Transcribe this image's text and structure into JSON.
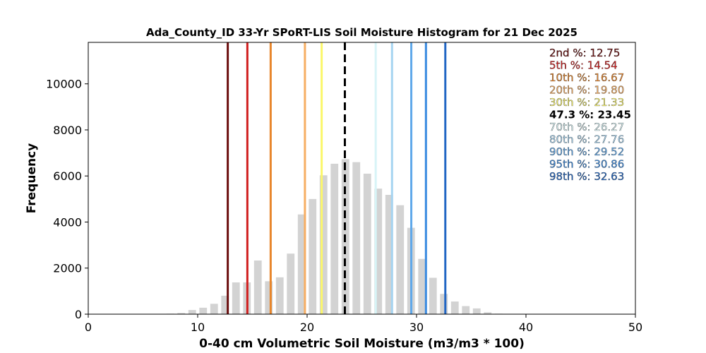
{
  "chart_data": {
    "type": "bar",
    "title": "Ada_County_ID 33-Yr SPoRT-LIS Soil Moisture Histogram for 21 Dec 2025",
    "xlabel": "0-40 cm Volumetric Soil Moisture (m3/m3 * 100)",
    "ylabel": "Frequency",
    "xlim": [
      0,
      50
    ],
    "ylim": [
      0,
      11800
    ],
    "xticks": [
      0,
      10,
      20,
      30,
      40,
      50
    ],
    "xtick_labels": [
      "0",
      "10",
      "20",
      "30",
      "40",
      "50"
    ],
    "yticks": [
      0,
      2000,
      4000,
      6000,
      8000,
      10000
    ],
    "ytick_labels": [
      "0",
      "2000",
      "4000",
      "6000",
      "8000",
      "10000"
    ],
    "bar_color": "#d3d3d3",
    "x": [
      7.5,
      8.5,
      9.5,
      10.5,
      11.5,
      12.5,
      13.5,
      14.5,
      15.5,
      16.5,
      17.5,
      18.5,
      19.5,
      20.5,
      21.5,
      22.5,
      23.5,
      24.5,
      25.5,
      26.5,
      27.5,
      28.5,
      29.5,
      30.5,
      31.5,
      32.5,
      33.5,
      34.5,
      35.5,
      36.5,
      37.5
    ],
    "values": [
      20,
      50,
      180,
      280,
      450,
      800,
      1380,
      1380,
      2330,
      1430,
      1600,
      2630,
      4330,
      5000,
      6030,
      6530,
      6730,
      6600,
      6100,
      5450,
      5180,
      4730,
      3750,
      2400,
      1580,
      880,
      550,
      350,
      250,
      80,
      20
    ],
    "percentile_lines": [
      {
        "label": "2nd %: 12.75",
        "value": 12.75,
        "color": "#6b0e0e",
        "style": "solid"
      },
      {
        "label": "5th %: 14.54",
        "value": 14.54,
        "color": "#d11f1f",
        "style": "solid"
      },
      {
        "label": "10th %: 16.67",
        "value": 16.67,
        "color": "#e8862b",
        "style": "solid"
      },
      {
        "label": "20th %: 19.80",
        "value": 19.8,
        "color": "#f6ae63",
        "style": "solid"
      },
      {
        "label": "30th %: 21.33",
        "value": 21.33,
        "color": "#fbf76a",
        "style": "solid"
      },
      {
        "label": "47.3 %: 23.45",
        "value": 23.45,
        "color": "#000000",
        "style": "dashed"
      },
      {
        "label": "70th %: 26.27",
        "value": 26.27,
        "color": "#d8f4f7",
        "style": "solid"
      },
      {
        "label": "80th %: 27.76",
        "value": 27.76,
        "color": "#a6d4f1",
        "style": "solid"
      },
      {
        "label": "90th %: 29.52",
        "value": 29.52,
        "color": "#5fa8ea",
        "style": "solid"
      },
      {
        "label": "95th %: 30.86",
        "value": 30.86,
        "color": "#3b8be0",
        "style": "solid"
      },
      {
        "label": "98th %: 32.63",
        "value": 32.63,
        "color": "#2166c4",
        "style": "solid"
      }
    ],
    "legend_position": "top-right",
    "grid": false
  }
}
